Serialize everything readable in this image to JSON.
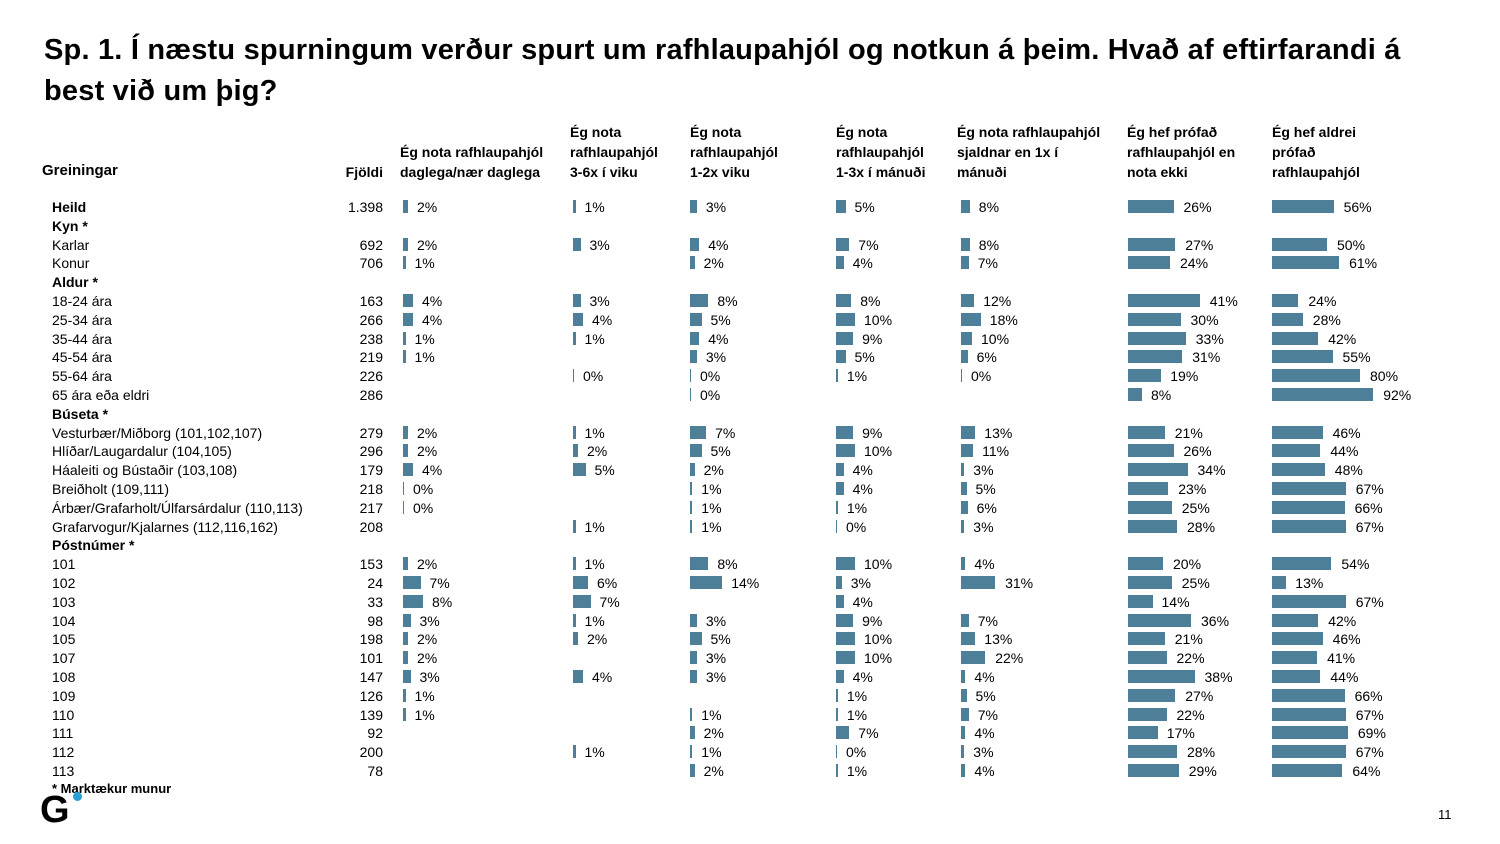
{
  "title": "Sp. 1. Í næstu spurningum verður spurt um rafhlaupahjól og notkun á þeim.  Hvað af eftirfarandi á best við um þig?",
  "group_header": "Greiningar",
  "n_header": "Fjöldi",
  "footnote": "* Marktækur munur",
  "page_number": "11",
  "logo_text": "G",
  "bar_color": "#4e7f99",
  "chart_data": {
    "type": "bar",
    "orientation": "horizontal-grouped-table",
    "title": "Sp. 1. Í næstu spurningum verður spurt um rafhlaupahjól og notkun á þeim.  Hvað af eftirfarandi á best við um þig?",
    "columns": [
      "Ég nota rafhlaupahjól\ndaglega/nær daglega",
      "Ég nota\nrafhlaupahjól\n3-6x í viku",
      "Ég nota\nrafhlaupahjól\n1-2x viku",
      "Ég nota\nrafhlaupahjól\n1-3x í mánuði",
      "Ég nota rafhlaupahjól\nsjaldnar en 1x í\nmánuði",
      "Ég hef prófað\nrafhlaupahjól en\nnota ekki",
      "Ég hef aldrei\nprófað\nrafhlaupahjól"
    ],
    "rows": [
      {
        "label": "Heild",
        "bold": true,
        "n": "1.398",
        "values": [
          2,
          1,
          3,
          5,
          8,
          26,
          56
        ]
      },
      {
        "label": "Kyn *",
        "bold": true,
        "header": true
      },
      {
        "label": "Karlar",
        "n": "692",
        "values": [
          2,
          3,
          4,
          7,
          8,
          27,
          50
        ]
      },
      {
        "label": "Konur",
        "n": "706",
        "values": [
          1,
          null,
          2,
          4,
          7,
          24,
          61
        ]
      },
      {
        "label": "Aldur *",
        "bold": true,
        "header": true
      },
      {
        "label": "18-24 ára",
        "n": "163",
        "values": [
          4,
          3,
          8,
          8,
          12,
          41,
          24
        ]
      },
      {
        "label": "25-34 ára",
        "n": "266",
        "values": [
          4,
          4,
          5,
          10,
          18,
          30,
          28
        ]
      },
      {
        "label": "35-44 ára",
        "n": "238",
        "values": [
          1,
          1,
          4,
          9,
          10,
          33,
          42
        ]
      },
      {
        "label": "45-54 ára",
        "n": "219",
        "values": [
          1,
          null,
          3,
          5,
          6,
          31,
          55
        ]
      },
      {
        "label": "55-64 ára",
        "n": "226",
        "values": [
          null,
          0,
          0,
          1,
          0,
          19,
          80
        ]
      },
      {
        "label": "65 ára eða eldri",
        "n": "286",
        "values": [
          null,
          null,
          0,
          null,
          null,
          8,
          92
        ]
      },
      {
        "label": "Búseta *",
        "bold": true,
        "header": true
      },
      {
        "label": "Vesturbær/Miðborg (101,102,107)",
        "n": "279",
        "values": [
          2,
          1,
          7,
          9,
          13,
          21,
          46
        ]
      },
      {
        "label": "Hlíðar/Laugardalur (104,105)",
        "n": "296",
        "values": [
          2,
          2,
          5,
          10,
          11,
          26,
          44
        ]
      },
      {
        "label": "Háaleiti og Bústaðir (103,108)",
        "n": "179",
        "values": [
          4,
          5,
          2,
          4,
          3,
          34,
          48
        ]
      },
      {
        "label": "Breiðholt (109,111)",
        "n": "218",
        "values": [
          0,
          null,
          1,
          4,
          5,
          23,
          67
        ]
      },
      {
        "label": "Árbær/Grafarholt/Úlfarsárdalur (110,113)",
        "n": "217",
        "values": [
          0,
          null,
          1,
          1,
          6,
          25,
          66
        ]
      },
      {
        "label": "Grafarvogur/Kjalarnes (112,116,162)",
        "n": "208",
        "values": [
          null,
          1,
          1,
          0,
          3,
          28,
          67
        ]
      },
      {
        "label": "Póstnúmer *",
        "bold": true,
        "header": true
      },
      {
        "label": "101",
        "n": "153",
        "values": [
          2,
          1,
          8,
          10,
          4,
          20,
          54
        ]
      },
      {
        "label": "102",
        "n": "24",
        "values": [
          7,
          6,
          14,
          3,
          31,
          25,
          13
        ]
      },
      {
        "label": "103",
        "n": "33",
        "values": [
          8,
          7,
          null,
          4,
          null,
          14,
          67
        ]
      },
      {
        "label": "104",
        "n": "98",
        "values": [
          3,
          1,
          3,
          9,
          7,
          36,
          42
        ]
      },
      {
        "label": "105",
        "n": "198",
        "values": [
          2,
          2,
          5,
          10,
          13,
          21,
          46
        ]
      },
      {
        "label": "107",
        "n": "101",
        "values": [
          2,
          null,
          3,
          10,
          22,
          22,
          41
        ]
      },
      {
        "label": "108",
        "n": "147",
        "values": [
          3,
          4,
          3,
          4,
          4,
          38,
          44
        ]
      },
      {
        "label": "109",
        "n": "126",
        "values": [
          1,
          null,
          null,
          1,
          5,
          27,
          66
        ]
      },
      {
        "label": "110",
        "n": "139",
        "values": [
          1,
          null,
          1,
          1,
          7,
          22,
          67
        ]
      },
      {
        "label": "111",
        "n": "92",
        "values": [
          null,
          null,
          2,
          7,
          4,
          17,
          69
        ]
      },
      {
        "label": "112",
        "n": "200",
        "values": [
          null,
          1,
          1,
          0,
          3,
          28,
          67
        ]
      },
      {
        "label": "113",
        "n": "78",
        "values": [
          null,
          null,
          2,
          1,
          4,
          29,
          64
        ]
      }
    ]
  }
}
